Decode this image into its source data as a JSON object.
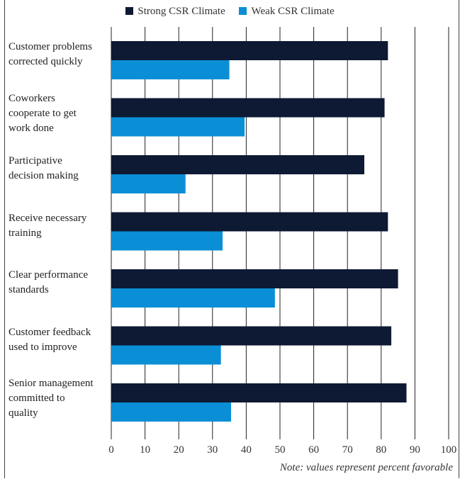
{
  "chart_data": {
    "type": "bar",
    "orientation": "horizontal",
    "categories": [
      [
        "Customer problems",
        "corrected quickly"
      ],
      [
        "Coworkers",
        "cooperate to get",
        "work done"
      ],
      [
        "Participative",
        "decision making"
      ],
      [
        "Receive necessary",
        "training"
      ],
      [
        "Clear performance",
        "standards"
      ],
      [
        "Customer feedback",
        "used to improve"
      ],
      [
        "Senior management",
        "committed to",
        "quality"
      ]
    ],
    "series": [
      {
        "name": "Strong CSR Climate",
        "color": "#0e1a33",
        "values": [
          82,
          81,
          75,
          82,
          85,
          83,
          87.5
        ]
      },
      {
        "name": "Weak CSR Climate",
        "color": "#0a8fd6",
        "values": [
          35,
          39.5,
          22,
          33,
          48.5,
          32.5,
          35.5
        ]
      }
    ],
    "xlim": [
      0,
      100
    ],
    "xticks": [
      "0",
      "10",
      "20",
      "30",
      "40",
      "50",
      "60",
      "70",
      "80",
      "90",
      "100"
    ],
    "grid": true,
    "legend_position": "top",
    "note": "Note: values represent percent favorable"
  }
}
